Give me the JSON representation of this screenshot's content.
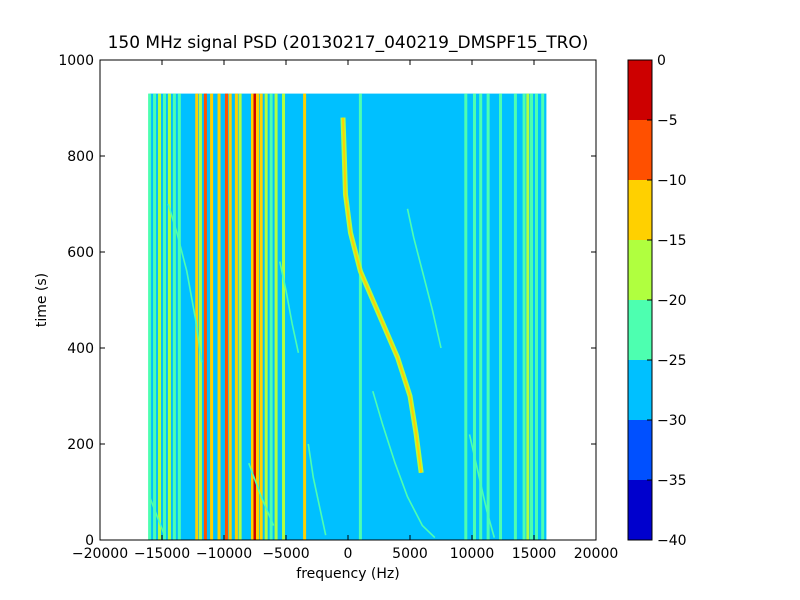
{
  "chart_data": {
    "type": "heatmap",
    "title": "150 MHz signal PSD (20130217_040219_DMSPF15_TRO)",
    "xlabel": "frequency (Hz)",
    "ylabel": "time (s)",
    "xlim": [
      -20000,
      20000
    ],
    "ylim": [
      0,
      1000
    ],
    "x_ticks": [
      -20000,
      -15000,
      -10000,
      -5000,
      0,
      5000,
      10000,
      15000,
      20000
    ],
    "y_ticks": [
      0,
      200,
      400,
      600,
      800,
      1000
    ],
    "data_extent": {
      "x": [
        -16000,
        16000
      ],
      "y": [
        0,
        930
      ]
    },
    "background_level": -27.5,
    "grid": false,
    "colorbar": {
      "levels": [
        -40,
        -35,
        -30,
        -25,
        -20,
        -15,
        -10,
        -5,
        0
      ],
      "tick_labels": [
        "−40",
        "−35",
        "−30",
        "−25",
        "−20",
        "−15",
        "−10",
        "−5",
        "0"
      ],
      "colors": [
        "#0000cd",
        "#0050ff",
        "#00c0ff",
        "#4dffb0",
        "#b0ff3f",
        "#ffd000",
        "#ff5000",
        "#cd0000"
      ]
    },
    "vertical_bands": [
      {
        "x": -16000,
        "level": -22.5
      },
      {
        "x": -15600,
        "level": -22.5
      },
      {
        "x": -15200,
        "level": -17.5
      },
      {
        "x": -14800,
        "level": -22.5
      },
      {
        "x": -14400,
        "level": -17.5
      },
      {
        "x": -14000,
        "level": -22.5
      },
      {
        "x": -13600,
        "level": -22.5
      },
      {
        "x": -12200,
        "level": -12.5
      },
      {
        "x": -11900,
        "level": -17.5
      },
      {
        "x": -11500,
        "level": -7.5
      },
      {
        "x": -11000,
        "level": -12.5
      },
      {
        "x": -10400,
        "level": -12.5
      },
      {
        "x": -9800,
        "level": -7.5
      },
      {
        "x": -9500,
        "level": -12.5
      },
      {
        "x": -9000,
        "level": -12.5
      },
      {
        "x": -8700,
        "level": -17.5
      },
      {
        "x": -7700,
        "level": -12.5
      },
      {
        "x": -7500,
        "level": -2.5
      },
      {
        "x": -7300,
        "level": -12.5
      },
      {
        "x": -7000,
        "level": -12.5
      },
      {
        "x": -6600,
        "level": -17.5
      },
      {
        "x": -6200,
        "level": -22.5
      },
      {
        "x": -5800,
        "level": -17.5
      },
      {
        "x": -5200,
        "level": -17.5
      },
      {
        "x": -3500,
        "level": -12.5
      },
      {
        "x": 1000,
        "level": -22.5
      },
      {
        "x": 9500,
        "level": -22.5
      },
      {
        "x": 10200,
        "level": -22.5
      },
      {
        "x": 10700,
        "level": -22.5
      },
      {
        "x": 11300,
        "level": -22.5
      },
      {
        "x": 12300,
        "level": -22.5
      },
      {
        "x": 13500,
        "level": -22.5
      },
      {
        "x": 14200,
        "level": -22.5
      },
      {
        "x": 14500,
        "level": -17.5
      },
      {
        "x": 14800,
        "level": -22.5
      },
      {
        "x": 15200,
        "level": -22.5
      },
      {
        "x": 15700,
        "level": -22.5
      }
    ],
    "curves": [
      {
        "level": -12.5,
        "points": [
          [
            -400,
            880
          ],
          [
            -300,
            800
          ],
          [
            -200,
            720
          ],
          [
            200,
            640
          ],
          [
            1000,
            560
          ],
          [
            2500,
            470
          ],
          [
            4000,
            380
          ],
          [
            5000,
            300
          ],
          [
            5500,
            220
          ],
          [
            5800,
            160
          ],
          [
            5900,
            140
          ]
        ]
      },
      {
        "level": -22.5,
        "points": [
          [
            4800,
            690
          ],
          [
            5300,
            630
          ],
          [
            6000,
            560
          ],
          [
            6800,
            480
          ],
          [
            7500,
            400
          ]
        ]
      },
      {
        "level": -22.5,
        "points": [
          [
            -14500,
            700
          ],
          [
            -13800,
            640
          ],
          [
            -13000,
            560
          ],
          [
            -12300,
            460
          ],
          [
            -11800,
            370
          ]
        ]
      },
      {
        "level": -22.5,
        "points": [
          [
            -5500,
            580
          ],
          [
            -5000,
            520
          ],
          [
            -4500,
            450
          ],
          [
            -4000,
            390
          ]
        ]
      },
      {
        "level": -22.5,
        "points": [
          [
            2000,
            310
          ],
          [
            2800,
            240
          ],
          [
            3800,
            160
          ],
          [
            4800,
            90
          ],
          [
            6000,
            30
          ],
          [
            7000,
            5
          ]
        ]
      },
      {
        "level": -22.5,
        "points": [
          [
            -3200,
            200
          ],
          [
            -2800,
            130
          ],
          [
            -2300,
            70
          ],
          [
            -1800,
            10
          ]
        ]
      },
      {
        "level": -22.5,
        "points": [
          [
            -8000,
            160
          ],
          [
            -7000,
            90
          ],
          [
            -6000,
            30
          ]
        ]
      },
      {
        "level": -22.5,
        "points": [
          [
            -16000,
            90
          ],
          [
            -15400,
            50
          ],
          [
            -14800,
            10
          ]
        ]
      },
      {
        "level": -22.5,
        "points": [
          [
            9800,
            220
          ],
          [
            10500,
            140
          ],
          [
            11200,
            60
          ],
          [
            11800,
            5
          ]
        ]
      }
    ]
  }
}
